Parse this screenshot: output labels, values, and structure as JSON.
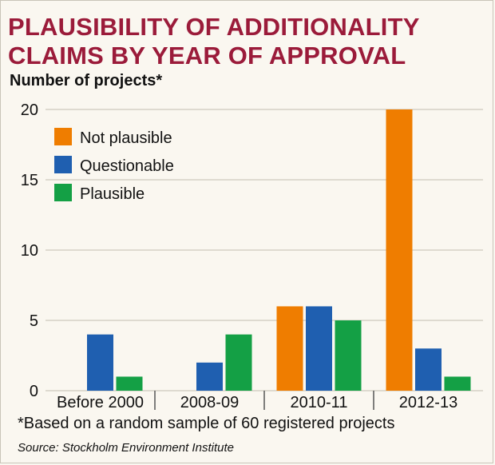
{
  "title": "PLAUSIBILITY OF ADDITIONALITY\nCLAIMS BY YEAR OF APPROVAL",
  "footnote": "*Based on a random sample of 60 registered projects",
  "source": "Source: Stockholm Environment Institute",
  "chart_data": {
    "type": "bar",
    "title": "PLAUSIBILITY OF ADDITIONALITY CLAIMS BY YEAR OF APPROVAL",
    "ylabel": "Number of projects*",
    "xlabel": "",
    "categories": [
      "Before 2000",
      "2008-09",
      "2010-11",
      "2012-13"
    ],
    "series": [
      {
        "name": "Not plausible",
        "color": "#ef7d00",
        "values": [
          0,
          0,
          6,
          20
        ]
      },
      {
        "name": "Questionable",
        "color": "#1f5fb0",
        "values": [
          4,
          2,
          6,
          3
        ]
      },
      {
        "name": "Plausible",
        "color": "#14a045",
        "values": [
          1,
          4,
          5,
          1
        ]
      }
    ],
    "ylim": [
      0,
      20
    ],
    "yticks": [
      0,
      5,
      10,
      15,
      20
    ],
    "grid": true,
    "gridline_color": "#d5d0c5",
    "legend_placement": "top-left"
  }
}
